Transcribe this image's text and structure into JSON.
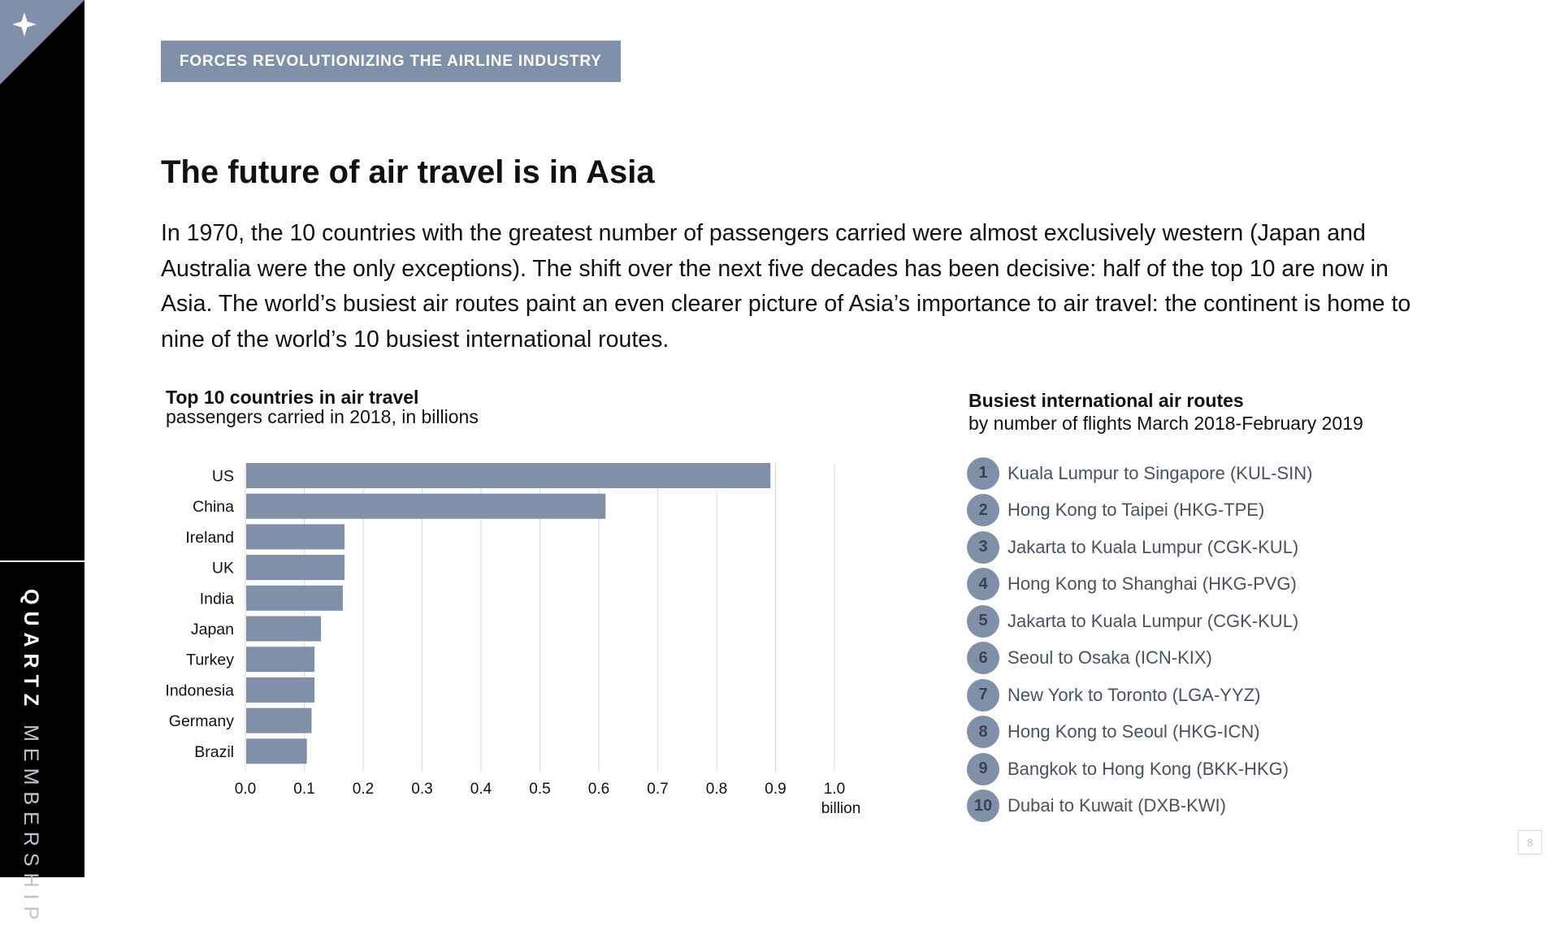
{
  "sidebar": {
    "brand_bold": "QUARTZ",
    "brand_light": "MEMBERSHIP",
    "corner_icon": "sparkle-icon"
  },
  "section_tag": "FORCES REVOLUTIONIZING THE AIRLINE INDUSTRY",
  "title": "The future of air travel is in Asia",
  "intro": "In 1970, the 10 countries with the greatest number of passengers carried were almost exclusively western (Japan and Australia were the only exceptions). The shift over the next five decades has been decisive: half of the top 10 are now in Asia. The world’s busiest air routes paint an even clearer picture of Asia’s importance to air travel: the continent is home to nine of the world’s 10 busiest international routes.",
  "colors": {
    "accent": "#8090a8",
    "sidebar": "#000000",
    "grid": "#d9d9d9"
  },
  "chart_data": {
    "type": "bar",
    "orientation": "horizontal",
    "title": "Top 10 countries in air travel",
    "subtitle": "passengers carried in 2018, in billions",
    "categories": [
      "US",
      "China",
      "Ireland",
      "UK",
      "India",
      "Japan",
      "Turkey",
      "Indonesia",
      "Germany",
      "Brazil"
    ],
    "values": [
      0.89,
      0.61,
      0.167,
      0.167,
      0.164,
      0.127,
      0.116,
      0.116,
      0.111,
      0.103
    ],
    "xticks": [
      "0.0",
      "0.1",
      "0.2",
      "0.3",
      "0.4",
      "0.5",
      "0.6",
      "0.7",
      "0.8",
      "0.9",
      "1.0"
    ],
    "xunit": "billion",
    "xlim": [
      0,
      1.0
    ],
    "grid": true
  },
  "routes": {
    "title": "Busiest international air routes",
    "subtitle": "by number of flights March 2018-February 2019",
    "items": [
      {
        "rank": "1",
        "label": "Kuala Lumpur to Singapore (KUL-SIN)"
      },
      {
        "rank": "2",
        "label": "Hong Kong to Taipei (HKG-TPE)"
      },
      {
        "rank": "3",
        "label": "Jakarta to Kuala Lumpur (CGK-KUL)"
      },
      {
        "rank": "4",
        "label": "Hong Kong to Shanghai (HKG-PVG)"
      },
      {
        "rank": "5",
        "label": "Jakarta to Kuala Lumpur (CGK-KUL)"
      },
      {
        "rank": "6",
        "label": "Seoul to Osaka (ICN-KIX)"
      },
      {
        "rank": "7",
        "label": "New York to Toronto (LGA-YYZ)"
      },
      {
        "rank": "8",
        "label": "Hong Kong to Seoul (HKG-ICN)"
      },
      {
        "rank": "9",
        "label": "Bangkok to Hong Kong (BKK-HKG)"
      },
      {
        "rank": "10",
        "label": "Dubai to Kuwait (DXB-KWI)"
      }
    ]
  },
  "page_number": "8"
}
